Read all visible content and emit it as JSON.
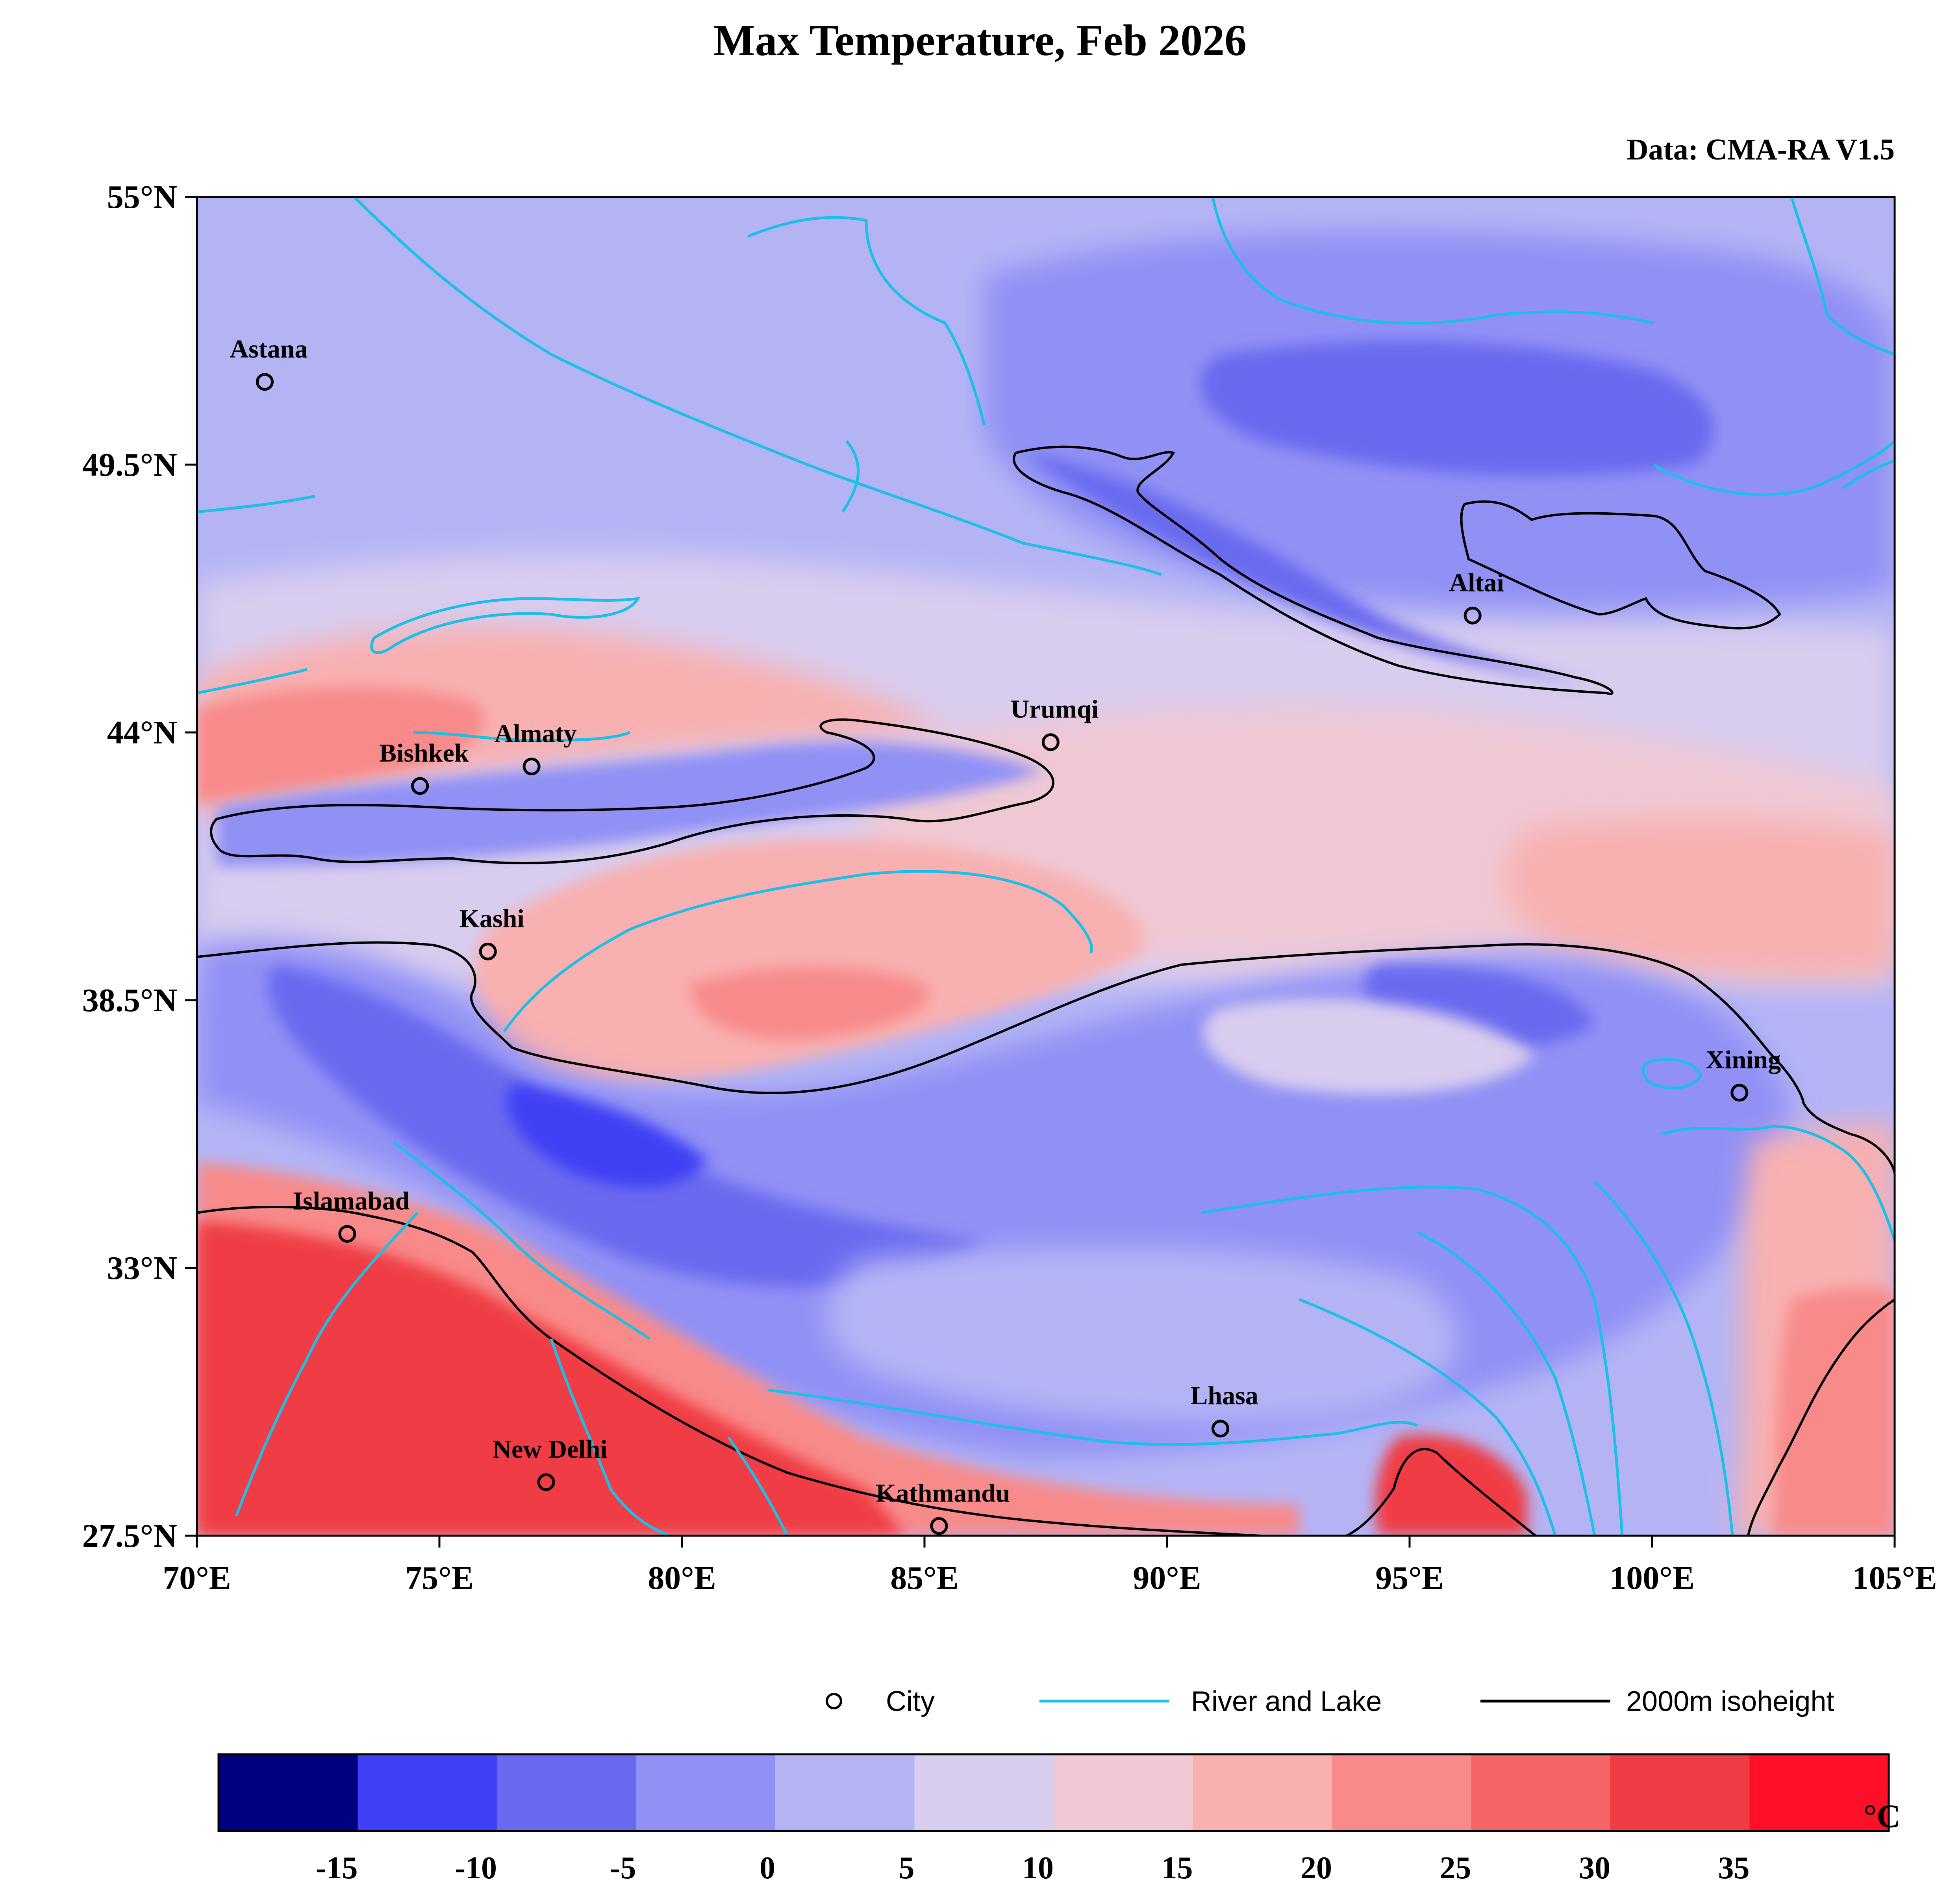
{
  "title": "Max Temperature, Feb 2026",
  "source": "Data: CMA-RA V1.5",
  "axes": {
    "x_ticks": [
      "70°E",
      "75°E",
      "80°E",
      "85°E",
      "90°E",
      "95°E",
      "100°E",
      "105°E"
    ],
    "y_ticks": [
      "55°N",
      "49.5°N",
      "44°N",
      "38.5°N",
      "33°N",
      "27.5°N"
    ],
    "lon_range": [
      70,
      105
    ],
    "lat_range": [
      27.5,
      55
    ]
  },
  "cities": [
    {
      "name": "Astana",
      "lon": 71.4,
      "lat": 51.2
    },
    {
      "name": "Bishkek",
      "lon": 74.6,
      "lat": 42.9
    },
    {
      "name": "Almaty",
      "lon": 76.9,
      "lat": 43.3
    },
    {
      "name": "Kashi",
      "lon": 76.0,
      "lat": 39.5
    },
    {
      "name": "Urumqi",
      "lon": 87.6,
      "lat": 43.8
    },
    {
      "name": "Altai",
      "lon": 96.3,
      "lat": 46.4
    },
    {
      "name": "Xining",
      "lon": 101.8,
      "lat": 36.6
    },
    {
      "name": "Islamabad",
      "lon": 73.1,
      "lat": 33.7
    },
    {
      "name": "Lhasa",
      "lon": 91.1,
      "lat": 29.7
    },
    {
      "name": "New Delhi",
      "lon": 77.2,
      "lat": 28.6
    },
    {
      "name": "Kathmandu",
      "lon": 85.3,
      "lat": 27.7
    }
  ],
  "legend": {
    "city": "City",
    "river": "River and Lake",
    "isoheight": "2000m isoheight"
  },
  "colorbar": {
    "unit": "°C",
    "labels": [
      "-15",
      "-10",
      "-5",
      "0",
      "5",
      "10",
      "15",
      "20",
      "25",
      "30",
      "35"
    ],
    "colors": [
      "#000080",
      "#3f3ff5",
      "#6a6af0",
      "#9090f5",
      "#b4b4f5",
      "#d8ccef",
      "#efc8d4",
      "#f8b0b0",
      "#f88a8a",
      "#f56565",
      "#f03c45",
      "#ff1028"
    ]
  },
  "colors": {
    "river": "#1cbfe8",
    "isoheight": "#000000",
    "cold_base": "#b4b4f5",
    "cold_mid": "#9090f5",
    "cold_deep": "#6a6af0",
    "warm_light": "#efc8d4",
    "warm_mid": "#f8b0b0",
    "warm_hot": "#f03c45"
  }
}
